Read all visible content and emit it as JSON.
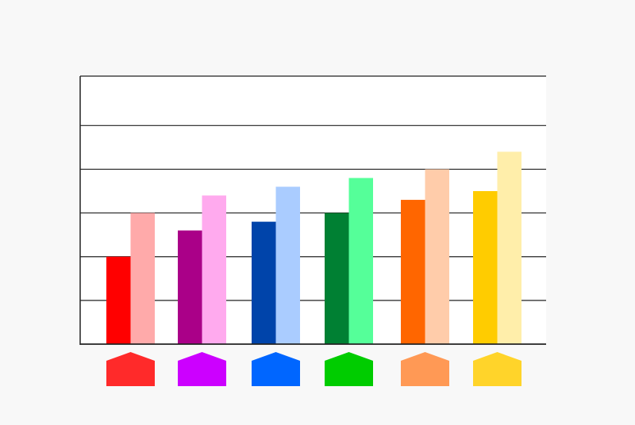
{
  "chart_data": {
    "type": "bar",
    "title": "",
    "xlabel": "",
    "ylabel": "",
    "ylim": [
      0,
      6.13
    ],
    "grid": true,
    "gridlines": [
      1,
      2,
      3,
      4,
      5
    ],
    "categories": [
      "",
      "",
      "",
      "",
      "",
      ""
    ],
    "category_marker_colors": [
      "#ff2a2a",
      "#cc00ff",
      "#0066ff",
      "#00cc00",
      "#ff9955",
      "#ffd42a"
    ],
    "series": [
      {
        "values": [
          2.0,
          2.6,
          2.8,
          3.0,
          3.3,
          3.5
        ],
        "colors": [
          "#ff0000",
          "#aa0088",
          "#0044aa",
          "#008033",
          "#ff6600",
          "#ffcc00"
        ]
      },
      {
        "values": [
          3.0,
          3.4,
          3.6,
          3.8,
          4.0,
          4.4
        ],
        "colors": [
          "#ffaaaa",
          "#ffaaee",
          "#aaccff",
          "#55ff99",
          "#ffccaa",
          "#ffeeaa"
        ]
      }
    ]
  }
}
